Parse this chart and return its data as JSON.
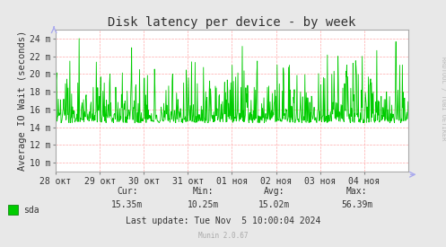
{
  "title": "Disk latency per device - by week",
  "ylabel": "Average IO Wait (seconds)",
  "bg_color": "#e8e8e8",
  "plot_bg_color": "#ffffff",
  "line_color": "#00cc00",
  "grid_color": "#ffaaaa",
  "border_color": "#aaaaaa",
  "ylim": [
    0.009,
    0.025
  ],
  "yticks": [
    0.01,
    0.012,
    0.014,
    0.016,
    0.018,
    0.02,
    0.022,
    0.024
  ],
  "ytick_labels": [
    "10 m",
    "12 m",
    "14 m",
    "16 m",
    "18 m",
    "20 m",
    "22 m",
    "24 m"
  ],
  "xtick_labels": [
    "28 окт",
    "29 окт",
    "30 окт",
    "31 окт",
    "01 ноя",
    "02 ноя",
    "03 ноя",
    "04 ноя"
  ],
  "legend_label": "sda",
  "legend_color": "#00cc00",
  "legend_edge_color": "#007700",
  "footer_cur_label": "Cur:",
  "footer_cur_val": "15.35m",
  "footer_min_label": "Min:",
  "footer_min_val": "10.25m",
  "footer_avg_label": "Avg:",
  "footer_avg_val": "15.02m",
  "footer_max_label": "Max:",
  "footer_max_val": "56.39m",
  "footer_update": "Last update: Tue Nov  5 10:00:04 2024",
  "footer_munin": "Munin 2.0.67",
  "rrdtool_label": "RRDTOOL / TOBI OETIKER",
  "title_fontsize": 10,
  "axis_label_fontsize": 7.5,
  "tick_fontsize": 7,
  "footer_fontsize": 7,
  "rrd_fontsize": 5,
  "munin_fontsize": 5.5,
  "arrow_color": "#aaaaee"
}
